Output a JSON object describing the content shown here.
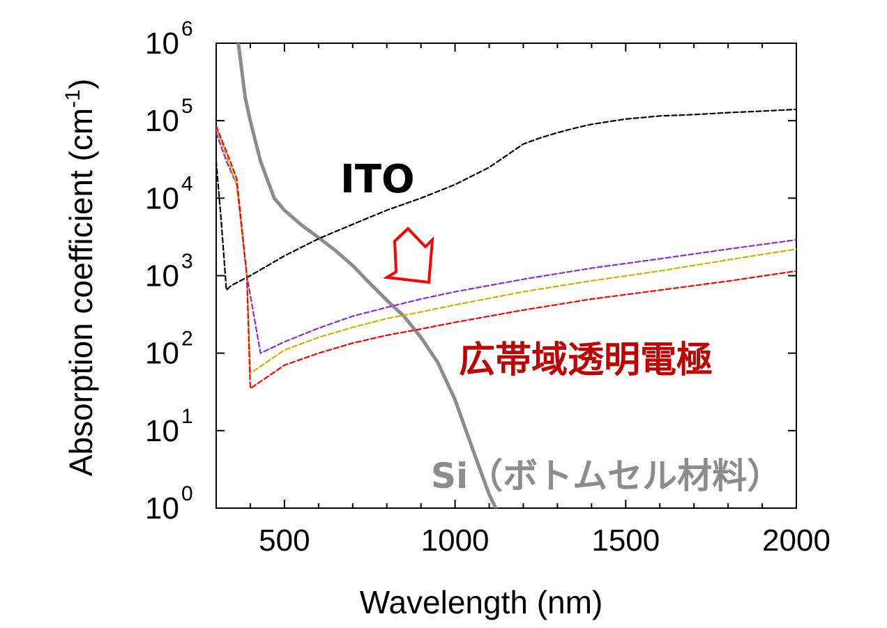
{
  "chart_data": {
    "type": "line",
    "xlabel": "Wavelength (nm)",
    "ylabel": "Absorption coefficient (cm",
    "ylabel_sup": "-1",
    "ylabel_close": ")",
    "xlim": [
      300,
      2000
    ],
    "ylim": [
      1,
      1000000
    ],
    "yscale": "log",
    "xticks": [
      500,
      1000,
      1500,
      2000
    ],
    "xtick_labels": [
      "500",
      "1000",
      "1500",
      "2000"
    ],
    "yticks": [
      1,
      10,
      100,
      1000,
      10000,
      100000,
      1000000
    ],
    "ytick_base": "10",
    "ytick_exponents": [
      "0",
      "1",
      "2",
      "3",
      "4",
      "5",
      "6"
    ],
    "grid": false,
    "series": [
      {
        "key": "si",
        "color": "#8c8c8c",
        "style": "solid",
        "x": [
          300,
          365,
          385,
          400,
          430,
          470,
          500,
          550,
          600,
          650,
          700,
          750,
          800,
          850,
          900,
          950,
          1000,
          1050,
          1100,
          1130
        ],
        "y": [
          3000000,
          1000000,
          200000,
          100000,
          30000,
          10000,
          7000,
          4500,
          3100,
          2100,
          1350,
          800,
          480,
          300,
          160,
          75,
          25,
          6,
          1.5,
          0.8
        ]
      },
      {
        "key": "ito",
        "color": "#000000",
        "style": "dashed",
        "x": [
          300,
          315,
          330,
          345,
          400,
          500,
          600,
          700,
          800,
          900,
          1000,
          1100,
          1200,
          1250,
          1300,
          1350,
          1400,
          1500,
          1600,
          1700,
          1800,
          1900,
          2000
        ],
        "y": [
          30000,
          5000,
          650,
          750,
          1000,
          1800,
          3000,
          4600,
          7000,
          10000,
          15000,
          25000,
          50000,
          60000,
          70000,
          80000,
          90000,
          105000,
          115000,
          120000,
          127000,
          133000,
          140000
        ]
      },
      {
        "key": "tce-purple",
        "color": "#8a2be2",
        "style": "dashed",
        "x": [
          300,
          330,
          360,
          390,
          430,
          500,
          600,
          700,
          800,
          900,
          1000,
          1200,
          1400,
          1600,
          1800,
          2000
        ],
        "y": [
          70000,
          30000,
          15000,
          1000,
          100,
          140,
          210,
          300,
          390,
          500,
          620,
          900,
          1250,
          1650,
          2200,
          2900
        ]
      },
      {
        "key": "tce-yellow",
        "color": "#c8b400",
        "style": "dashed",
        "x": [
          300,
          330,
          360,
          390,
          400,
          500,
          600,
          700,
          800,
          900,
          1000,
          1200,
          1400,
          1600,
          1800,
          2000
        ],
        "y": [
          80000,
          35000,
          15000,
          1000,
          55,
          110,
          160,
          215,
          280,
          340,
          420,
          620,
          860,
          1150,
          1600,
          2200
        ]
      },
      {
        "key": "tce-red",
        "color": "#ff0000",
        "style": "dashed",
        "x": [
          300,
          330,
          360,
          390,
          400,
          500,
          600,
          700,
          800,
          900,
          1000,
          1200,
          1400,
          1600,
          1800,
          2000
        ],
        "y": [
          85000,
          40000,
          18000,
          1000,
          35,
          70,
          100,
          135,
          170,
          205,
          250,
          360,
          500,
          650,
          850,
          1150
        ]
      }
    ],
    "annotations": {
      "ito": "ITO",
      "tce": "広帯域透明電極",
      "si": "Si（ボトムセル材料）"
    },
    "colors": {
      "arrow": "#ff0000",
      "tce_label": "#c00000",
      "si_label": "#8c8c8c"
    }
  }
}
